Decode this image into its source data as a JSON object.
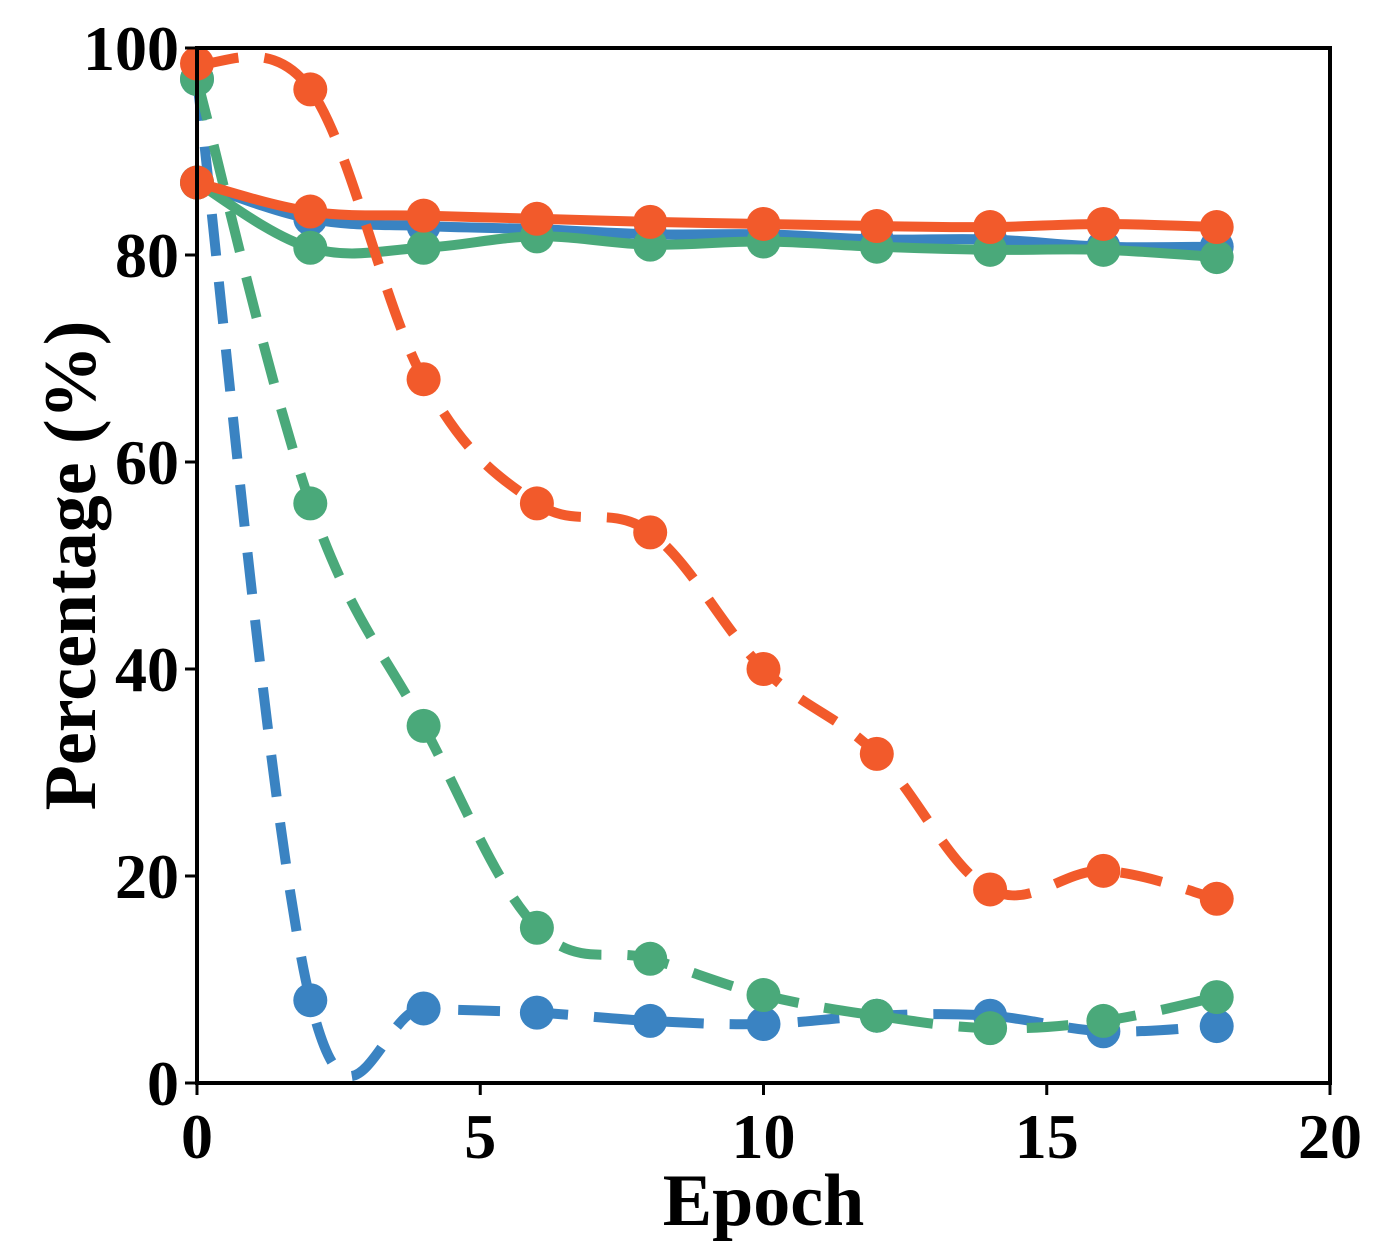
{
  "chart_data": {
    "type": "line",
    "xlabel": "Epoch",
    "ylabel": "Percentage (%)",
    "xlim": [
      0,
      20
    ],
    "ylim": [
      0,
      100
    ],
    "xticks": [
      0,
      5,
      10,
      15,
      20
    ],
    "yticks": [
      0,
      20,
      40,
      60,
      80,
      100
    ],
    "grid": false,
    "series": [
      {
        "color": "#3a83c2",
        "style": "solid",
        "x": [
          0,
          2,
          4,
          6,
          8,
          10,
          12,
          14,
          16,
          18
        ],
        "values": [
          87,
          83.5,
          82.8,
          82.5,
          82,
          82,
          81.5,
          81.5,
          80.8,
          80.8
        ]
      },
      {
        "color": "#3a83c2",
        "style": "dashed",
        "x": [
          0,
          2,
          4,
          6,
          8,
          10,
          12,
          14,
          16,
          18
        ],
        "values": [
          97,
          8,
          7.2,
          6.8,
          6,
          5.7,
          6.5,
          6.5,
          5,
          5.5
        ]
      },
      {
        "color": "#4aa97a",
        "style": "solid",
        "x": [
          0,
          2,
          4,
          6,
          8,
          10,
          12,
          14,
          16,
          18
        ],
        "values": [
          87,
          80.7,
          80.7,
          81.8,
          81,
          81.3,
          80.8,
          80.5,
          80.5,
          79.8
        ]
      },
      {
        "color": "#4aa97a",
        "style": "dashed",
        "x": [
          0,
          2,
          4,
          6,
          8,
          10,
          12,
          14,
          16,
          18
        ],
        "values": [
          97,
          56,
          34.5,
          15,
          12,
          8.5,
          6.5,
          5.3,
          6,
          8.3
        ]
      },
      {
        "color": "#f25a2b",
        "style": "solid",
        "x": [
          0,
          2,
          4,
          6,
          8,
          10,
          12,
          14,
          16,
          18
        ],
        "values": [
          87,
          84.2,
          83.8,
          83.5,
          83.2,
          83,
          82.8,
          82.7,
          83,
          82.7
        ]
      },
      {
        "color": "#f25a2b",
        "style": "dashed",
        "x": [
          0,
          2,
          4,
          6,
          8,
          10,
          12,
          14,
          16,
          18
        ],
        "values": [
          98.5,
          96,
          68,
          56,
          53.2,
          40,
          31.8,
          18.7,
          20.5,
          17.8
        ]
      }
    ]
  }
}
